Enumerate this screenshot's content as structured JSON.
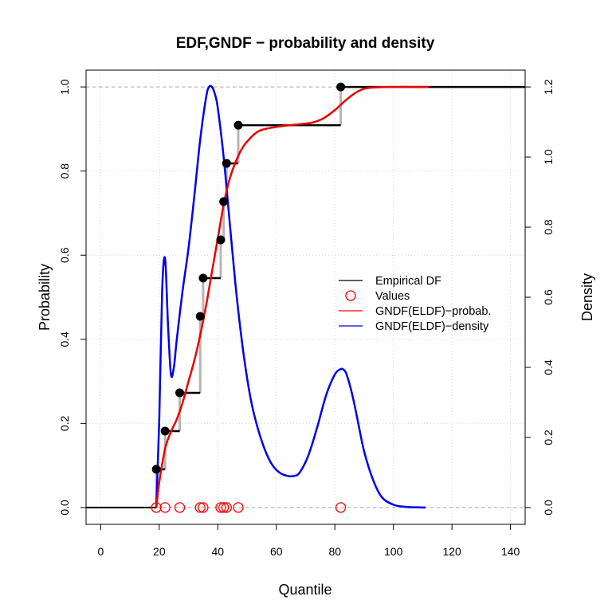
{
  "chart_data": {
    "type": "line",
    "title": "EDF,GNDF − probability and density",
    "xlabel": "Quantile",
    "ylabel": "Probability",
    "y2label": "Density",
    "xlim": [
      -5,
      145
    ],
    "ylim": [
      -0.04,
      1.04
    ],
    "y2lim": [
      -0.048,
      1.248
    ],
    "xticks": [
      0,
      20,
      40,
      60,
      80,
      100,
      120,
      140
    ],
    "yticks": [
      0.0,
      0.2,
      0.4,
      0.6,
      0.8,
      1.0
    ],
    "y2ticks": [
      0.0,
      0.2,
      0.4,
      0.6,
      0.8,
      1.0,
      1.2
    ],
    "xtick_labels": [
      "0",
      "20",
      "40",
      "60",
      "80",
      "100",
      "120",
      "140"
    ],
    "ytick_labels": [
      "0.0",
      "0.2",
      "0.4",
      "0.6",
      "0.8",
      "1.0"
    ],
    "y2tick_labels": [
      "0.0",
      "0.2",
      "0.4",
      "0.6",
      "0.8",
      "1.0",
      "1.2"
    ],
    "grid": true,
    "legend_position": "center-right",
    "legend": [
      {
        "label": "Empirical DF",
        "color": "#000000",
        "kind": "line"
      },
      {
        "label": "Values",
        "color": "#ff0000",
        "kind": "circle"
      },
      {
        "label": "GNDF(ELDF)−probab.",
        "color": "#ff0000",
        "kind": "line"
      },
      {
        "label": "GNDF(ELDF)−density",
        "color": "#0000ff",
        "kind": "line"
      }
    ],
    "values": [
      19,
      22,
      27,
      34,
      35,
      41,
      42,
      43,
      47,
      82
    ],
    "edf_y": [
      0.0909,
      0.1818,
      0.2727,
      0.4545,
      0.5455,
      0.6364,
      0.7273,
      0.8182,
      0.9091,
      1.0
    ],
    "gndf_probability": {
      "x": [
        19,
        20,
        22,
        24,
        26,
        28,
        30,
        32,
        34,
        36,
        38,
        40,
        42,
        44,
        46,
        48,
        50,
        54,
        60,
        66,
        72,
        76,
        80,
        84,
        88,
        92,
        100,
        112
      ],
      "y": [
        0.0,
        0.06,
        0.14,
        0.18,
        0.21,
        0.25,
        0.3,
        0.35,
        0.41,
        0.48,
        0.56,
        0.64,
        0.72,
        0.78,
        0.82,
        0.85,
        0.87,
        0.895,
        0.905,
        0.91,
        0.915,
        0.925,
        0.945,
        0.97,
        0.99,
        0.998,
        1.0,
        1.0
      ]
    },
    "gndf_density": {
      "x": [
        19,
        20,
        21,
        22,
        23,
        24,
        25,
        26,
        28,
        30,
        32,
        34,
        36,
        37,
        38,
        39,
        40,
        42,
        44,
        46,
        48,
        50,
        52,
        55,
        58,
        61,
        64,
        66,
        68,
        71,
        74,
        77,
        80,
        82,
        83,
        84,
        86,
        88,
        90,
        93,
        96,
        100,
        104,
        108,
        111
      ],
      "y": [
        0.0,
        0.25,
        0.62,
        0.71,
        0.52,
        0.38,
        0.4,
        0.48,
        0.62,
        0.74,
        0.89,
        1.05,
        1.17,
        1.2,
        1.2,
        1.18,
        1.14,
        1.0,
        0.82,
        0.64,
        0.49,
        0.37,
        0.28,
        0.19,
        0.13,
        0.1,
        0.09,
        0.09,
        0.1,
        0.15,
        0.23,
        0.32,
        0.38,
        0.395,
        0.393,
        0.38,
        0.32,
        0.24,
        0.16,
        0.08,
        0.03,
        0.008,
        0.002,
        0.0005,
        0.0
      ]
    }
  }
}
